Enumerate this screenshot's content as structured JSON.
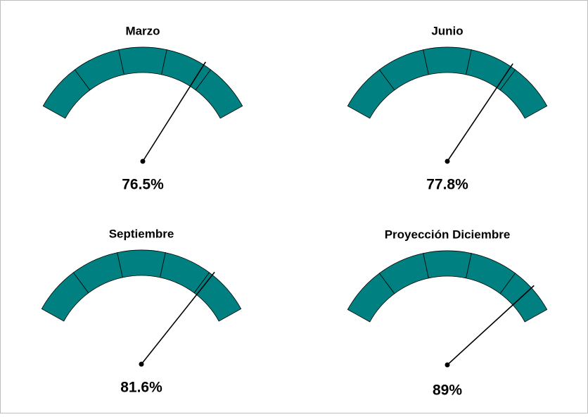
{
  "chart_data": [
    {
      "type": "gauge",
      "title": "Marzo",
      "values": [
        76.5
      ],
      "value_labels": [
        "76.5%"
      ],
      "ylim": [
        0,
        100
      ],
      "color": "#008080"
    },
    {
      "type": "gauge",
      "title": "Junio",
      "values": [
        77.8
      ],
      "value_labels": [
        "77.8%"
      ],
      "ylim": [
        0,
        100
      ],
      "color": "#008080"
    },
    {
      "type": "gauge",
      "title": "Septiembre",
      "values": [
        81.6
      ],
      "value_labels": [
        "81.6%"
      ],
      "ylim": [
        0,
        100
      ],
      "color": "#008080"
    },
    {
      "type": "gauge",
      "title": "Proyección  Diciembre",
      "values": [
        89
      ],
      "value_labels": [
        "89%"
      ],
      "ylim": [
        0,
        100
      ],
      "color": "#008080"
    }
  ]
}
